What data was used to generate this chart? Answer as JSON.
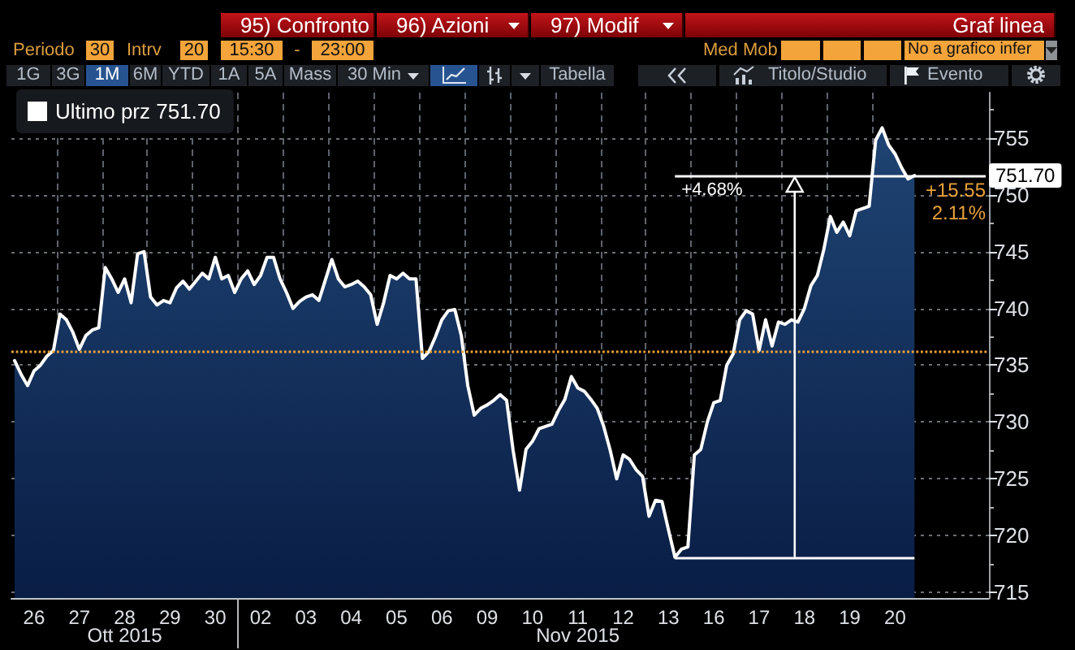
{
  "chart_data": {
    "type": "area",
    "categories": [
      null,
      null,
      null,
      "26",
      null,
      null,
      null,
      null,
      null,
      null,
      "27",
      null,
      null,
      null,
      null,
      null,
      null,
      "28",
      null,
      null,
      null,
      null,
      null,
      null,
      "29",
      null,
      null,
      null,
      null,
      null,
      null,
      "30",
      null,
      null,
      null,
      null,
      null,
      null,
      "02",
      null,
      null,
      null,
      null,
      null,
      null,
      "03",
      null,
      null,
      null,
      null,
      null,
      null,
      "04",
      null,
      null,
      null,
      null,
      null,
      null,
      "05",
      null,
      null,
      null,
      null,
      null,
      null,
      "06",
      null,
      null,
      null,
      null,
      null,
      null,
      "09",
      null,
      null,
      null,
      null,
      null,
      null,
      "10",
      null,
      null,
      null,
      null,
      null,
      null,
      "11",
      null,
      null,
      null,
      null,
      null,
      null,
      "12",
      null,
      null,
      null,
      null,
      null,
      null,
      "13",
      null,
      null,
      null,
      null,
      null,
      null,
      "16",
      null,
      null,
      null,
      null,
      null,
      null,
      "17",
      null,
      null,
      null,
      null,
      null,
      null,
      "18",
      null,
      null,
      null,
      null,
      null,
      null,
      "19",
      null,
      null,
      null,
      null,
      null,
      null,
      "20",
      null,
      null,
      null,
      null,
      null,
      null,
      null,
      null,
      null,
      null,
      null,
      null,
      null,
      null
    ],
    "series": [
      {
        "name": "Ultimo prz 751.70",
        "color": "#ffffff",
        "values": [
          735.4,
          734.2,
          733.2,
          734.5,
          735.0,
          735.8,
          736.3,
          739.5,
          739.0,
          737.9,
          736.4,
          737.6,
          738.1,
          738.3,
          743.6,
          742.6,
          741.4,
          742.6,
          740.5,
          744.8,
          745.0,
          741.0,
          740.3,
          740.7,
          740.5,
          741.8,
          742.4,
          741.7,
          742.4,
          743.1,
          742.6,
          744.5,
          742.6,
          742.9,
          741.4,
          742.6,
          743.3,
          742.1,
          742.9,
          744.5,
          744.5,
          742.6,
          741.4,
          740.0,
          740.6,
          741.0,
          741.2,
          740.7,
          742.5,
          744.3,
          742.6,
          741.9,
          742.1,
          742.4,
          741.9,
          741.2,
          738.6,
          740.5,
          742.9,
          742.6,
          743.1,
          742.6,
          742.6,
          735.6,
          736.2,
          737.5,
          739.0,
          739.8,
          739.9,
          737.6,
          733.2,
          730.6,
          731.2,
          731.5,
          731.9,
          732.4,
          731.9,
          727.5,
          724.0,
          727.6,
          728.3,
          729.4,
          729.6,
          729.8,
          731.0,
          732.0,
          734.0,
          733.0,
          732.7,
          732.0,
          731.2,
          729.6,
          727.5,
          725.0,
          727.1,
          726.7,
          725.8,
          725.2,
          721.7,
          723.1,
          723.0,
          720.5,
          718.1,
          718.8,
          719.0,
          727.1,
          727.6,
          730.0,
          731.7,
          731.9,
          735.0,
          736.0,
          739.0,
          739.8,
          739.5,
          736.3,
          739.0,
          736.7,
          738.8,
          738.6,
          739.0,
          738.8,
          740.0,
          742.0,
          742.9,
          745.2,
          748.1,
          746.7,
          747.6,
          746.4,
          748.6,
          748.8,
          749.0,
          754.8,
          755.9,
          754.4,
          753.6,
          752.4,
          751.4,
          751.7,
          null,
          null,
          null,
          null,
          null,
          null,
          null,
          null,
          null,
          null,
          null
        ]
      }
    ],
    "ylim": [
      714.5,
      759
    ],
    "yticks": [
      715,
      {
        "value": 717.5,
        "label": null
      },
      720,
      {
        "value": 722.5,
        "label": null
      },
      725,
      {
        "value": 727.5,
        "label": null
      },
      730,
      {
        "value": 732.5,
        "label": null
      },
      735,
      {
        "value": 737.5,
        "label": null
      },
      740,
      {
        "value": 742.5,
        "label": null
      },
      745,
      {
        "value": 747.5,
        "label": null
      },
      750,
      {
        "value": 752.5,
        "label": null
      },
      755,
      {
        "value": 757.5,
        "label": null
      }
    ],
    "grid": true,
    "legend": "top left",
    "ref_lines": [
      {
        "axis": "y",
        "value": 736.15,
        "color": "#e9a23b",
        "line_style": "dotted"
      },
      {
        "axis": "y",
        "value": 751.7,
        "label": "751.70",
        "color": "#ffffff"
      },
      {
        "axis": "y",
        "value": 718.1,
        "color": "#ffffff"
      }
    ],
    "annotations": [
      "95) Confronto",
      "96) Azioni",
      "97) Modif",
      "Graf linea",
      "Periodo",
      "30",
      "Intrv",
      "20",
      "15:30",
      "-",
      "23:00",
      "Med Mob",
      "No a grafico infer",
      "1G",
      "3G",
      "1M",
      "6M",
      "YTD",
      "1A",
      "5A",
      "Mass",
      "30 Min",
      "Tabella",
      "Titolo/Studio",
      "Evento",
      "+4.68%",
      "+15.55",
      "2.11%",
      "Ott 2015",
      "Nov 2015"
    ]
  }
}
